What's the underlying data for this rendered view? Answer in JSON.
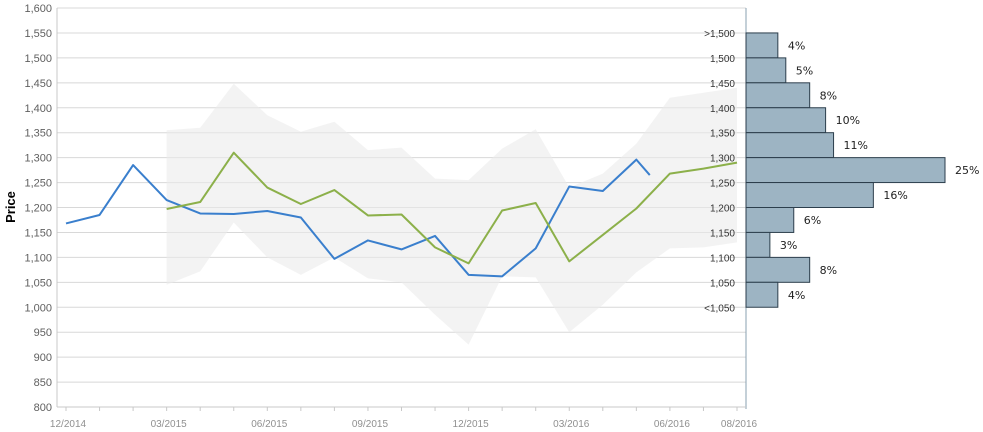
{
  "chart_data": {
    "type": "line",
    "ylabel": "Price",
    "ylim": [
      800,
      1600
    ],
    "yticks": [
      800,
      850,
      900,
      950,
      1000,
      1050,
      1100,
      1150,
      1200,
      1250,
      1300,
      1350,
      1400,
      1450,
      1500,
      1550,
      1600
    ],
    "x_ticks": [
      "12/2014",
      "03/2015",
      "06/2015",
      "09/2015",
      "12/2015",
      "03/2016",
      "06/2016",
      "08/2016"
    ],
    "x_months": [
      "12/2014",
      "01/2015",
      "02/2015",
      "03/2015",
      "04/2015",
      "05/2015",
      "06/2015",
      "07/2015",
      "08/2015",
      "09/2015",
      "10/2015",
      "11/2015",
      "12/2015",
      "01/2016",
      "02/2016",
      "03/2016",
      "04/2016",
      "05/2016",
      "06/2016",
      "07/2016",
      "08/2016"
    ],
    "colors": {
      "actual": "#3a7fcd",
      "forecast": "#8cb04a",
      "band": "#ebebeb",
      "histogram": "#9db4c3",
      "grid": "#d8d8d8",
      "ylabel": "#3a7fcd"
    },
    "series": [
      {
        "key": "actual",
        "x": [
          "12/2014",
          "01/2015",
          "02/2015",
          "03/2015",
          "04/2015",
          "05/2015",
          "06/2015",
          "07/2015",
          "08/2015",
          "09/2015",
          "10/2015",
          "11/2015",
          "12/2015",
          "01/2016",
          "02/2016",
          "03/2016",
          "04/2016",
          "05/2016",
          "05/2016+"
        ],
        "values": [
          1168,
          1185,
          1285,
          1215,
          1188,
          1187,
          1193,
          1180,
          1097,
          1134,
          1116,
          1143,
          1065,
          1062,
          1118,
          1242,
          1233,
          1296,
          1265
        ]
      },
      {
        "key": "forecast",
        "x": [
          "03/2015",
          "04/2015",
          "05/2015",
          "06/2015",
          "07/2015",
          "08/2015",
          "09/2015",
          "10/2015",
          "11/2015",
          "12/2015",
          "01/2016",
          "02/2016",
          "03/2016",
          "04/2016",
          "05/2016",
          "06/2016",
          "07/2016",
          "08/2016"
        ],
        "values": [
          1197,
          1211,
          1310,
          1240,
          1207,
          1235,
          1184,
          1186,
          1120,
          1088,
          1194,
          1209,
          1092,
          1145,
          1198,
          1268,
          1278,
          1290
        ]
      }
    ],
    "band": {
      "x": [
        "03/2015",
        "04/2015",
        "05/2015",
        "06/2015",
        "07/2015",
        "08/2015",
        "09/2015",
        "10/2015",
        "11/2015",
        "12/2015",
        "01/2016",
        "02/2016",
        "03/2016",
        "04/2016",
        "05/2016",
        "06/2016",
        "07/2016",
        "08/2016"
      ],
      "upper": [
        1355,
        1360,
        1448,
        1385,
        1352,
        1372,
        1315,
        1320,
        1258,
        1255,
        1318,
        1357,
        1240,
        1268,
        1328,
        1420,
        1430,
        1440
      ],
      "lower": [
        1045,
        1072,
        1170,
        1100,
        1065,
        1100,
        1058,
        1050,
        985,
        925,
        1062,
        1060,
        950,
        1005,
        1070,
        1118,
        1120,
        1130
      ]
    },
    "histogram": {
      "bins": [
        {
          "label": ">1,500",
          "low": 1500,
          "high": 1550,
          "pct": 4,
          "pct_label": "4%"
        },
        {
          "label": "1,500",
          "low": 1450,
          "high": 1500,
          "pct": 5,
          "pct_label": "5%"
        },
        {
          "label": "1,450",
          "low": 1400,
          "high": 1450,
          "pct": 8,
          "pct_label": "8%"
        },
        {
          "label": "1,400",
          "low": 1350,
          "high": 1400,
          "pct": 10,
          "pct_label": "10%"
        },
        {
          "label": "1,350",
          "low": 1300,
          "high": 1350,
          "pct": 11,
          "pct_label": "11%"
        },
        {
          "label": "1,300",
          "low": 1250,
          "high": 1300,
          "pct": 25,
          "pct_label": "25%"
        },
        {
          "label": "1,250",
          "low": 1200,
          "high": 1250,
          "pct": 16,
          "pct_label": "16%"
        },
        {
          "label": "1,200",
          "low": 1150,
          "high": 1200,
          "pct": 6,
          "pct_label": "6%"
        },
        {
          "label": "1,150",
          "low": 1100,
          "high": 1150,
          "pct": 3,
          "pct_label": "3%"
        },
        {
          "label": "1,100",
          "low": 1050,
          "high": 1100,
          "pct": 8,
          "pct_label": "8%"
        },
        {
          "label": "1,050",
          "low": 1000,
          "high": 1050,
          "pct": 4,
          "pct_label": "4%"
        },
        {
          "label": "<1,050",
          "low": 1000,
          "high": 1000,
          "pct": 0,
          "pct_label": ""
        }
      ]
    }
  }
}
